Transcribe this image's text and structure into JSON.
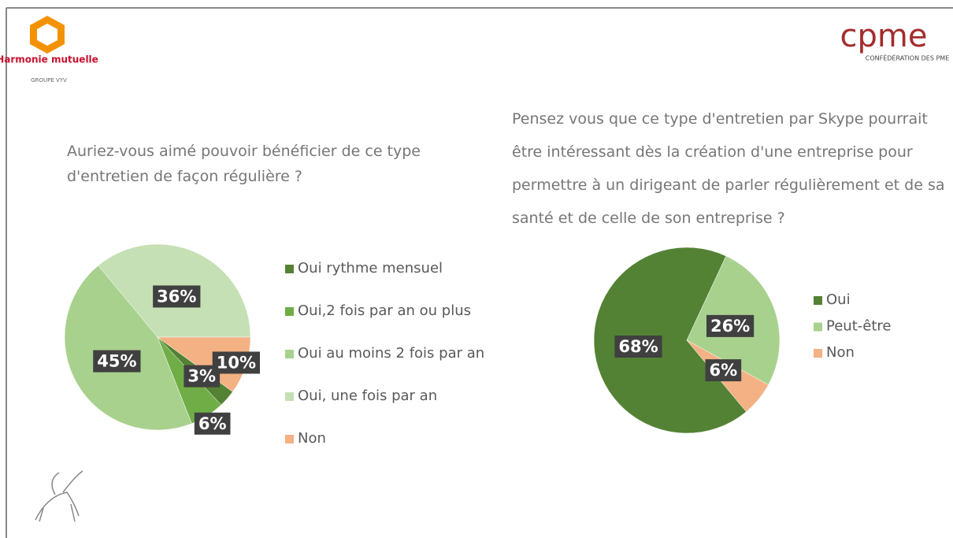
{
  "logos": {
    "left_name": "Harmonie mutuelle",
    "left_group": "GROUPE VYV",
    "right_name": "cpme",
    "right_sub": "CONFÉDÉRATION DES PME"
  },
  "chart_data": [
    {
      "type": "pie",
      "title": "Auriez-vous aimé pouvoir bénéficier de ce type d'entretien de façon régulière ?",
      "categories": [
        "Oui rythme mensuel",
        "Oui,2 fois par an ou plus",
        "Oui au moins 2 fois par an",
        "Oui, une fois par an",
        "Non"
      ],
      "values": [
        3,
        6,
        45,
        36,
        10
      ],
      "value_labels": [
        "3%",
        "6%",
        "45%",
        "36%",
        "10%"
      ],
      "colors": [
        "#548235",
        "#70ad47",
        "#a9d18e",
        "#c5e0b4",
        "#f4b183"
      ],
      "legend": "right"
    },
    {
      "type": "pie",
      "title": "Pensez vous que ce type d'entretien par Skype pourrait être intéressant dès la création d'une entreprise pour permettre à un dirigeant de parler régulièrement et de sa santé et de celle de son entreprise ?",
      "categories": [
        "Oui",
        "Peut-être",
        "Non"
      ],
      "values": [
        68,
        26,
        6
      ],
      "value_labels": [
        "68%",
        "26%",
        "6%"
      ],
      "colors": [
        "#548235",
        "#a9d18e",
        "#f4b183"
      ],
      "legend": "right"
    }
  ]
}
